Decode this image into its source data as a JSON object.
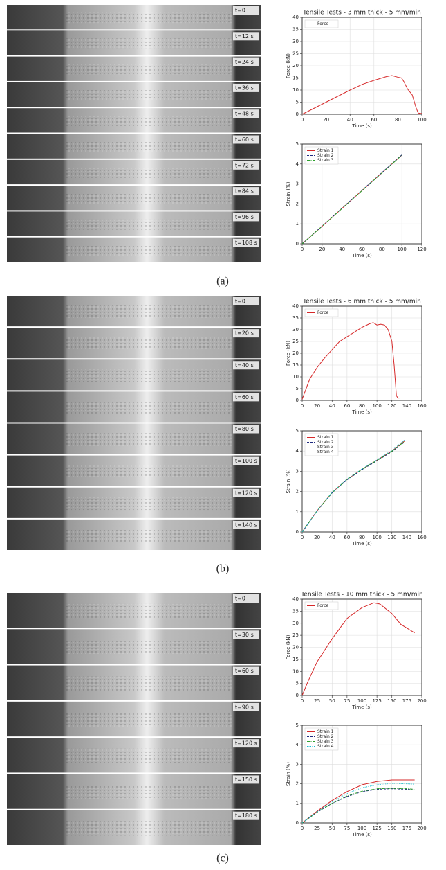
{
  "panels": [
    {
      "label": "(a)",
      "frames": [
        "t=0",
        "t=12 s",
        "t=24 s",
        "t=36 s",
        "t=48 s",
        "t=60 s",
        "t=72 s",
        "t=84 s",
        "t=96 s",
        "t=108 s"
      ]
    },
    {
      "label": "(b)",
      "frames": [
        "t=0",
        "t=20 s",
        "t=40 s",
        "t=60 s",
        "t=80 s",
        "t=100 s",
        "t=120 s",
        "t=140 s"
      ]
    },
    {
      "label": "(c)",
      "frames": [
        "t=0",
        "t=30 s",
        "t=60 s",
        "t=90 s",
        "t=120 s",
        "t=150 s",
        "t=180 s"
      ]
    }
  ],
  "chart_data": [
    {
      "type": "line",
      "title": "Tensile Tests - 3 mm thick - 5 mm/min",
      "xlabel": "Time (s)",
      "ylabel": "Force (kN)",
      "x": [
        0,
        10,
        20,
        30,
        40,
        50,
        60,
        70,
        75,
        80,
        83,
        85,
        88,
        92,
        95,
        97,
        100
      ],
      "series": [
        {
          "name": "Force",
          "color": "#d62728",
          "linestyle": "solid",
          "values": [
            0,
            2.5,
            5,
            7.5,
            10,
            12.3,
            14,
            15.5,
            16,
            15.3,
            15,
            13.5,
            10.5,
            8,
            3,
            0.5,
            0.3
          ]
        }
      ],
      "xlim": [
        0,
        100
      ],
      "xticks": [
        0,
        20,
        40,
        60,
        80,
        100
      ],
      "ylim": [
        0,
        40
      ],
      "yticks": [
        0,
        5,
        10,
        15,
        20,
        25,
        30,
        35,
        40
      ],
      "grid": true,
      "legend": "upper left"
    },
    {
      "type": "line",
      "xlabel": "Time (s)",
      "ylabel": "Strain (%)",
      "x": [
        0,
        20,
        40,
        60,
        80,
        100
      ],
      "series": [
        {
          "name": "Strain 1",
          "color": "#d62728",
          "linestyle": "solid",
          "values": [
            0,
            0.88,
            1.78,
            2.67,
            3.56,
            4.45
          ]
        },
        {
          "name": "Strain 2",
          "color": "#1f2a80",
          "linestyle": "dashed",
          "values": [
            0,
            0.89,
            1.79,
            2.68,
            3.57,
            4.46
          ]
        },
        {
          "name": "Strain 3",
          "color": "#2ca02c",
          "linestyle": "dashdot",
          "values": [
            0,
            0.88,
            1.77,
            2.66,
            3.55,
            4.44
          ]
        }
      ],
      "xlim": [
        0,
        120
      ],
      "xticks": [
        0,
        20,
        40,
        60,
        80,
        100,
        120
      ],
      "ylim": [
        0,
        5
      ],
      "yticks": [
        0,
        1,
        2,
        3,
        4,
        5
      ],
      "grid": true,
      "legend": "upper left"
    },
    {
      "type": "line",
      "title": "Tensile Tests - 6 mm thick - 5 mm/min",
      "xlabel": "Time (s)",
      "ylabel": "Force (kN)",
      "x": [
        0,
        10,
        20,
        30,
        40,
        50,
        60,
        70,
        80,
        90,
        95,
        100,
        105,
        110,
        115,
        120,
        123,
        126,
        128,
        130
      ],
      "series": [
        {
          "name": "Force",
          "color": "#d62728",
          "linestyle": "solid",
          "values": [
            0.5,
            9,
            14,
            18,
            21.5,
            25,
            27,
            29,
            31,
            32.5,
            33,
            32,
            32.3,
            32,
            30,
            25,
            15,
            2,
            1,
            1
          ]
        }
      ],
      "xlim": [
        0,
        160
      ],
      "xticks": [
        0,
        20,
        40,
        60,
        80,
        100,
        120,
        140,
        160
      ],
      "ylim": [
        0,
        40
      ],
      "yticks": [
        0,
        5,
        10,
        15,
        20,
        25,
        30,
        35,
        40
      ],
      "grid": true,
      "legend": "upper left"
    },
    {
      "type": "line",
      "xlabel": "Time (s)",
      "ylabel": "Strain (%)",
      "x": [
        0,
        20,
        40,
        60,
        80,
        100,
        120,
        137
      ],
      "series": [
        {
          "name": "Strain 1",
          "color": "#d62728",
          "linestyle": "solid",
          "values": [
            0,
            1.05,
            1.95,
            2.6,
            3.1,
            3.55,
            4.0,
            4.5
          ]
        },
        {
          "name": "Strain 2",
          "color": "#1f2a80",
          "linestyle": "dashed",
          "values": [
            0,
            1.04,
            1.93,
            2.58,
            3.08,
            3.52,
            3.97,
            4.45
          ]
        },
        {
          "name": "Strain 3",
          "color": "#2ca02c",
          "linestyle": "dashdot",
          "values": [
            0,
            1.05,
            1.94,
            2.6,
            3.1,
            3.54,
            3.99,
            4.48
          ]
        },
        {
          "name": "Strain 4",
          "color": "#17becf",
          "linestyle": "dotted",
          "values": [
            0,
            1.05,
            1.96,
            2.62,
            3.12,
            3.57,
            4.03,
            4.55
          ]
        }
      ],
      "xlim": [
        0,
        160
      ],
      "xticks": [
        0,
        20,
        40,
        60,
        80,
        100,
        120,
        140,
        160
      ],
      "ylim": [
        0,
        5
      ],
      "yticks": [
        0,
        1,
        2,
        3,
        4,
        5
      ],
      "grid": true,
      "legend": "upper left"
    },
    {
      "type": "line",
      "title": "Tensile Tests - 10 mm thick - 5 mm/min",
      "xlabel": "Time (s)",
      "ylabel": "Force (kN)",
      "x": [
        0,
        10,
        25,
        50,
        75,
        100,
        120,
        130,
        150,
        165,
        175,
        188
      ],
      "series": [
        {
          "name": "Force",
          "color": "#d62728",
          "linestyle": "solid",
          "values": [
            0,
            6,
            14,
            23.5,
            32,
            36.5,
            38.5,
            38,
            34,
            29.5,
            28,
            26
          ]
        }
      ],
      "xlim": [
        0,
        200
      ],
      "xticks": [
        0,
        25,
        50,
        75,
        100,
        125,
        150,
        175,
        200
      ],
      "ylim": [
        0,
        40
      ],
      "yticks": [
        0,
        5,
        10,
        15,
        20,
        25,
        30,
        35,
        40
      ],
      "grid": true,
      "legend": "upper left"
    },
    {
      "type": "line",
      "xlabel": "Time (s)",
      "ylabel": "Strain (%)",
      "x": [
        0,
        25,
        50,
        75,
        100,
        125,
        150,
        175,
        188
      ],
      "series": [
        {
          "name": "Strain 1",
          "color": "#d62728",
          "linestyle": "solid",
          "values": [
            0,
            0.6,
            1.15,
            1.6,
            1.95,
            2.12,
            2.2,
            2.2,
            2.2
          ]
        },
        {
          "name": "Strain 2",
          "color": "#1f2a80",
          "linestyle": "dashed",
          "values": [
            0,
            0.55,
            1.0,
            1.35,
            1.6,
            1.72,
            1.75,
            1.72,
            1.68
          ]
        },
        {
          "name": "Strain 3",
          "color": "#2ca02c",
          "linestyle": "dashdot",
          "values": [
            0,
            0.55,
            1.0,
            1.38,
            1.62,
            1.75,
            1.77,
            1.75,
            1.72
          ]
        },
        {
          "name": "Strain 4",
          "color": "#17becf",
          "linestyle": "dotted",
          "values": [
            0,
            0.57,
            1.08,
            1.5,
            1.8,
            1.95,
            2.02,
            2.0,
            1.98
          ]
        }
      ],
      "xlim": [
        0,
        200
      ],
      "xticks": [
        0,
        25,
        50,
        75,
        100,
        125,
        150,
        175,
        200
      ],
      "ylim": [
        0,
        5
      ],
      "yticks": [
        0,
        1,
        2,
        3,
        4,
        5
      ],
      "grid": true,
      "legend": "upper left"
    }
  ]
}
